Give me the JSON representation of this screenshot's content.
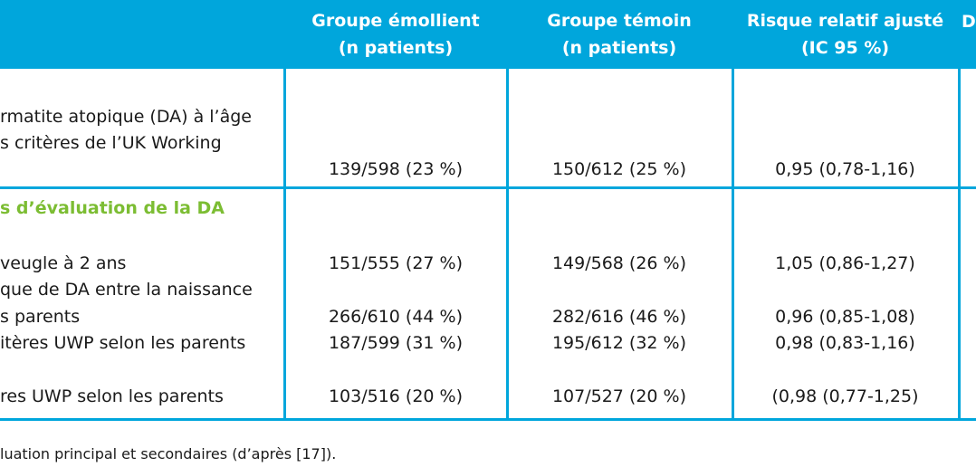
{
  "header": {
    "col_emollient": [
      "Groupe émollient",
      "(n patients)"
    ],
    "col_control": [
      "Groupe témoin",
      "(n patients)"
    ],
    "col_rr": [
      "Risque relatif ajusté",
      "(IC 95 %)"
    ],
    "col_next_partial": "D"
  },
  "primary": {
    "label_lines": [
      "rmatite atopique (DA) à l’âge",
      "s critères de l’UK Working"
    ],
    "emollient": "139/598 (23 %)",
    "control": "150/612 (25 %)",
    "rr": "0,95 (0,78-1,16)"
  },
  "section_title": "s d’évaluation de la DA",
  "rows": [
    {
      "label": "veugle à 2 ans",
      "emollient": "151/555 (27 %)",
      "control": "149/568 (26 %)",
      "rr": "1,05 (0,86-1,27)"
    },
    {
      "label": "que de DA entre la naissance",
      "emollient": "",
      "control": "",
      "rr": ""
    },
    {
      "label": "s parents",
      "emollient": "266/610 (44 %)",
      "control": "282/616 (46 %)",
      "rr": "0,96 (0,85-1,08)"
    },
    {
      "label": "itères UWP selon les parents",
      "emollient": "187/599 (31 %)",
      "control": "195/612 (32 %)",
      "rr": "0,98 (0,83-1,16)"
    },
    {
      "label": "res UWP selon les parents",
      "emollient": "103/516 (20 %)",
      "control": "107/527 (20 %)",
      "rr": "(0,98 (0,77-1,25)"
    }
  ],
  "caption": "luation principal et secondaires (d’après [17]).",
  "colors": {
    "header_bg": "#00a6dc",
    "header_text": "#ffffff",
    "section_title": "#7cbd33",
    "rules": "#00a6dc"
  }
}
